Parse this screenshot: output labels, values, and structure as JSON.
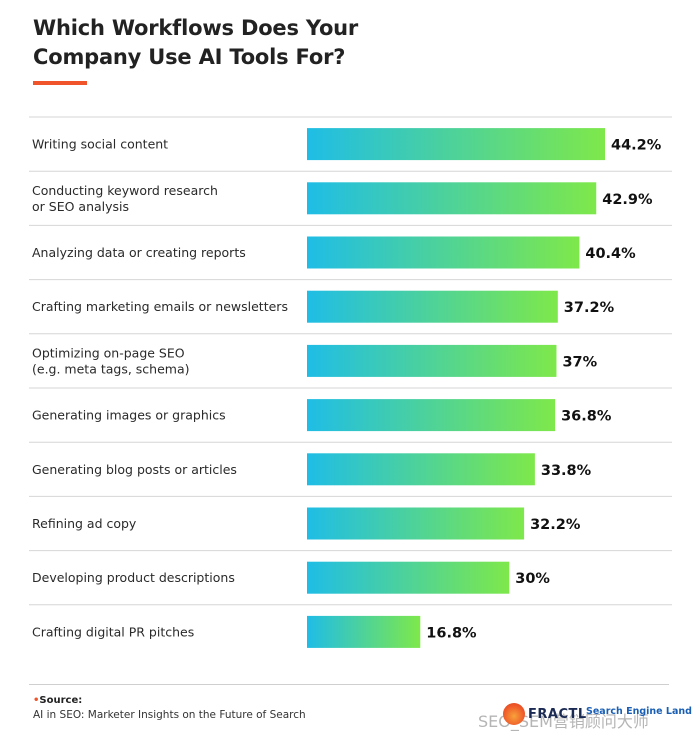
{
  "header": {
    "title_line1": "Which Workflows Does Your",
    "title_line2": "Company Use AI Tools For?",
    "accent_color": "#f0542b"
  },
  "chart_data": {
    "type": "bar",
    "orientation": "horizontal",
    "title": "Which Workflows Does Your Company Use AI Tools For?",
    "categories": [
      [
        "Writing social content"
      ],
      [
        "Conducting keyword research",
        "or SEO analysis"
      ],
      [
        "Analyzing data or creating reports"
      ],
      [
        "Crafting marketing emails or newsletters"
      ],
      [
        "Optimizing on-page SEO",
        "(e.g. meta tags, schema)"
      ],
      [
        "Generating images or graphics"
      ],
      [
        "Generating blog posts or articles"
      ],
      [
        "Refining ad copy"
      ],
      [
        "Developing product descriptions"
      ],
      [
        "Crafting digital PR pitches"
      ]
    ],
    "values": [
      44.2,
      42.9,
      40.4,
      37.2,
      37,
      36.8,
      33.8,
      32.2,
      30,
      16.8
    ],
    "value_labels": [
      "44.2%",
      "42.9%",
      "40.4%",
      "37.2%",
      "37%",
      "36.8%",
      "33.8%",
      "32.2%",
      "30%",
      "16.8%"
    ],
    "xlim": [
      0,
      44.2
    ],
    "xlabel": "",
    "ylabel": "",
    "grid": false,
    "bar_gradient": [
      "#1fbde6",
      "#7ee84a"
    ]
  },
  "footer": {
    "source_label": "Source:",
    "source_text": "AI in SEO: Marketer Insights on the Future of Search",
    "logo_fractl": "FRACTL",
    "logo_sel": "Search Engine Land",
    "watermark": "SEO_SEM营销顾问大师"
  }
}
